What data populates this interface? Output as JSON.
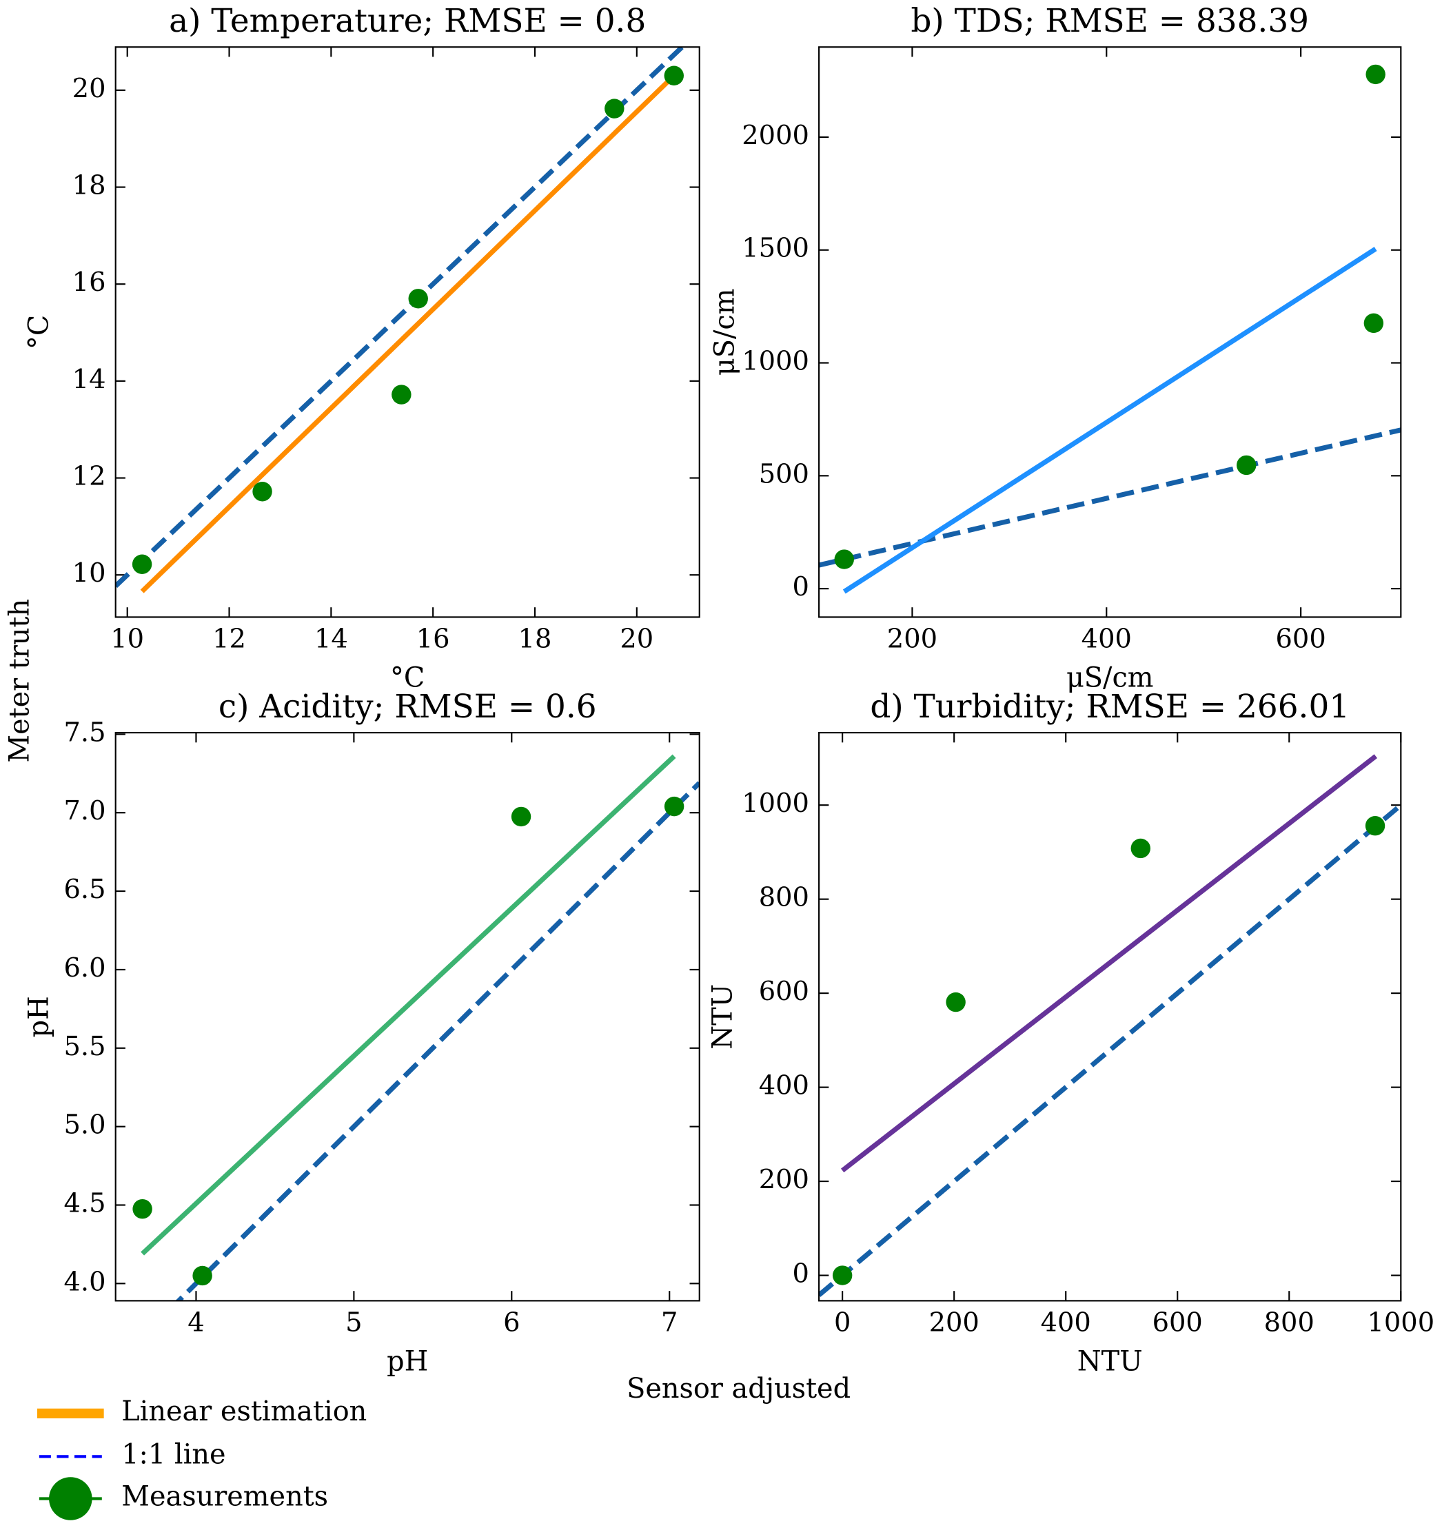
{
  "figure": {
    "xlabel": "Sensor adjusted",
    "ylabel": "Meter truth",
    "legend": [
      {
        "label": "Linear estimation",
        "color": "#ffa500"
      },
      {
        "label": "1:1 line",
        "color": "#0000ff"
      },
      {
        "label": "Measurements",
        "color": "#008000"
      }
    ]
  },
  "chart_data": [
    {
      "type": "scatter",
      "title": "a) Temperature; RMSE = 0.8",
      "xlabel": "°C",
      "ylabel": "°C",
      "xlim": [
        9.77,
        21.23
      ],
      "ylim": [
        9.13,
        20.89
      ],
      "xticks": [
        10,
        12,
        14,
        16,
        18,
        20
      ],
      "yticks": [
        10,
        12,
        14,
        16,
        18,
        20
      ],
      "measurements": {
        "color": "#008000",
        "x": [
          10.29,
          12.65,
          15.38,
          15.71,
          19.56,
          20.73
        ],
        "values": [
          10.22,
          11.72,
          13.72,
          15.7,
          19.62,
          20.3
        ]
      },
      "fit": {
        "color": "#ff8c00",
        "x": [
          10.29,
          20.73
        ],
        "values": [
          9.66,
          20.3
        ]
      }
    },
    {
      "type": "scatter",
      "title": "b) TDS; RMSE = 838.39",
      "xlabel": "μS/cm",
      "ylabel": "μS/cm",
      "xlim": [
        104,
        703
      ],
      "ylim": [
        -126,
        2399
      ],
      "xticks": [
        200,
        400,
        600
      ],
      "yticks": [
        0,
        500,
        1000,
        1500,
        2000
      ],
      "measurements": {
        "color": "#008000",
        "x": [
          130,
          544,
          675,
          677
        ],
        "values": [
          130,
          547,
          1176,
          2278
        ]
      },
      "fit": {
        "color": "#1e90ff",
        "x": [
          130,
          677
        ],
        "values": [
          -13,
          1505
        ]
      }
    },
    {
      "type": "scatter",
      "title": "c) Acidity; RMSE = 0.6",
      "xlabel": "pH",
      "ylabel": "pH",
      "xlim": [
        3.49,
        7.19
      ],
      "ylim": [
        3.89,
        7.51
      ],
      "xticks": [
        4,
        5,
        6,
        7
      ],
      "yticks": [
        {
          "value": 4,
          "label": "4.0"
        },
        4.5,
        {
          "value": 5,
          "label": "5.0"
        },
        5.5,
        {
          "value": 6,
          "label": "6.0"
        },
        6.5,
        {
          "value": 7,
          "label": "7.0"
        },
        7.5
      ],
      "measurements": {
        "color": "#008000",
        "x": [
          3.66,
          4.04,
          6.06,
          7.03
        ],
        "values": [
          4.475,
          4.05,
          6.975,
          7.04
        ]
      },
      "fit": {
        "color": "#3cb371",
        "x": [
          3.66,
          7.03
        ],
        "values": [
          4.19,
          7.36
        ]
      }
    },
    {
      "type": "scatter",
      "title": "d) Turbidity; RMSE = 266.01",
      "xlabel": "NTU",
      "ylabel": "NTU",
      "xlim": [
        -42,
        1000
      ],
      "ylim": [
        -54,
        1154
      ],
      "xticks": [
        0,
        200,
        400,
        600,
        800,
        1000
      ],
      "yticks": [
        0,
        200,
        400,
        600,
        800,
        1000
      ],
      "measurements": {
        "color": "#008000",
        "x": [
          0,
          203,
          534,
          954
        ],
        "values": [
          0,
          581,
          908,
          956
        ]
      },
      "fit": {
        "color": "#663399",
        "x": [
          0,
          955
        ],
        "values": [
          223,
          1104
        ]
      }
    }
  ]
}
